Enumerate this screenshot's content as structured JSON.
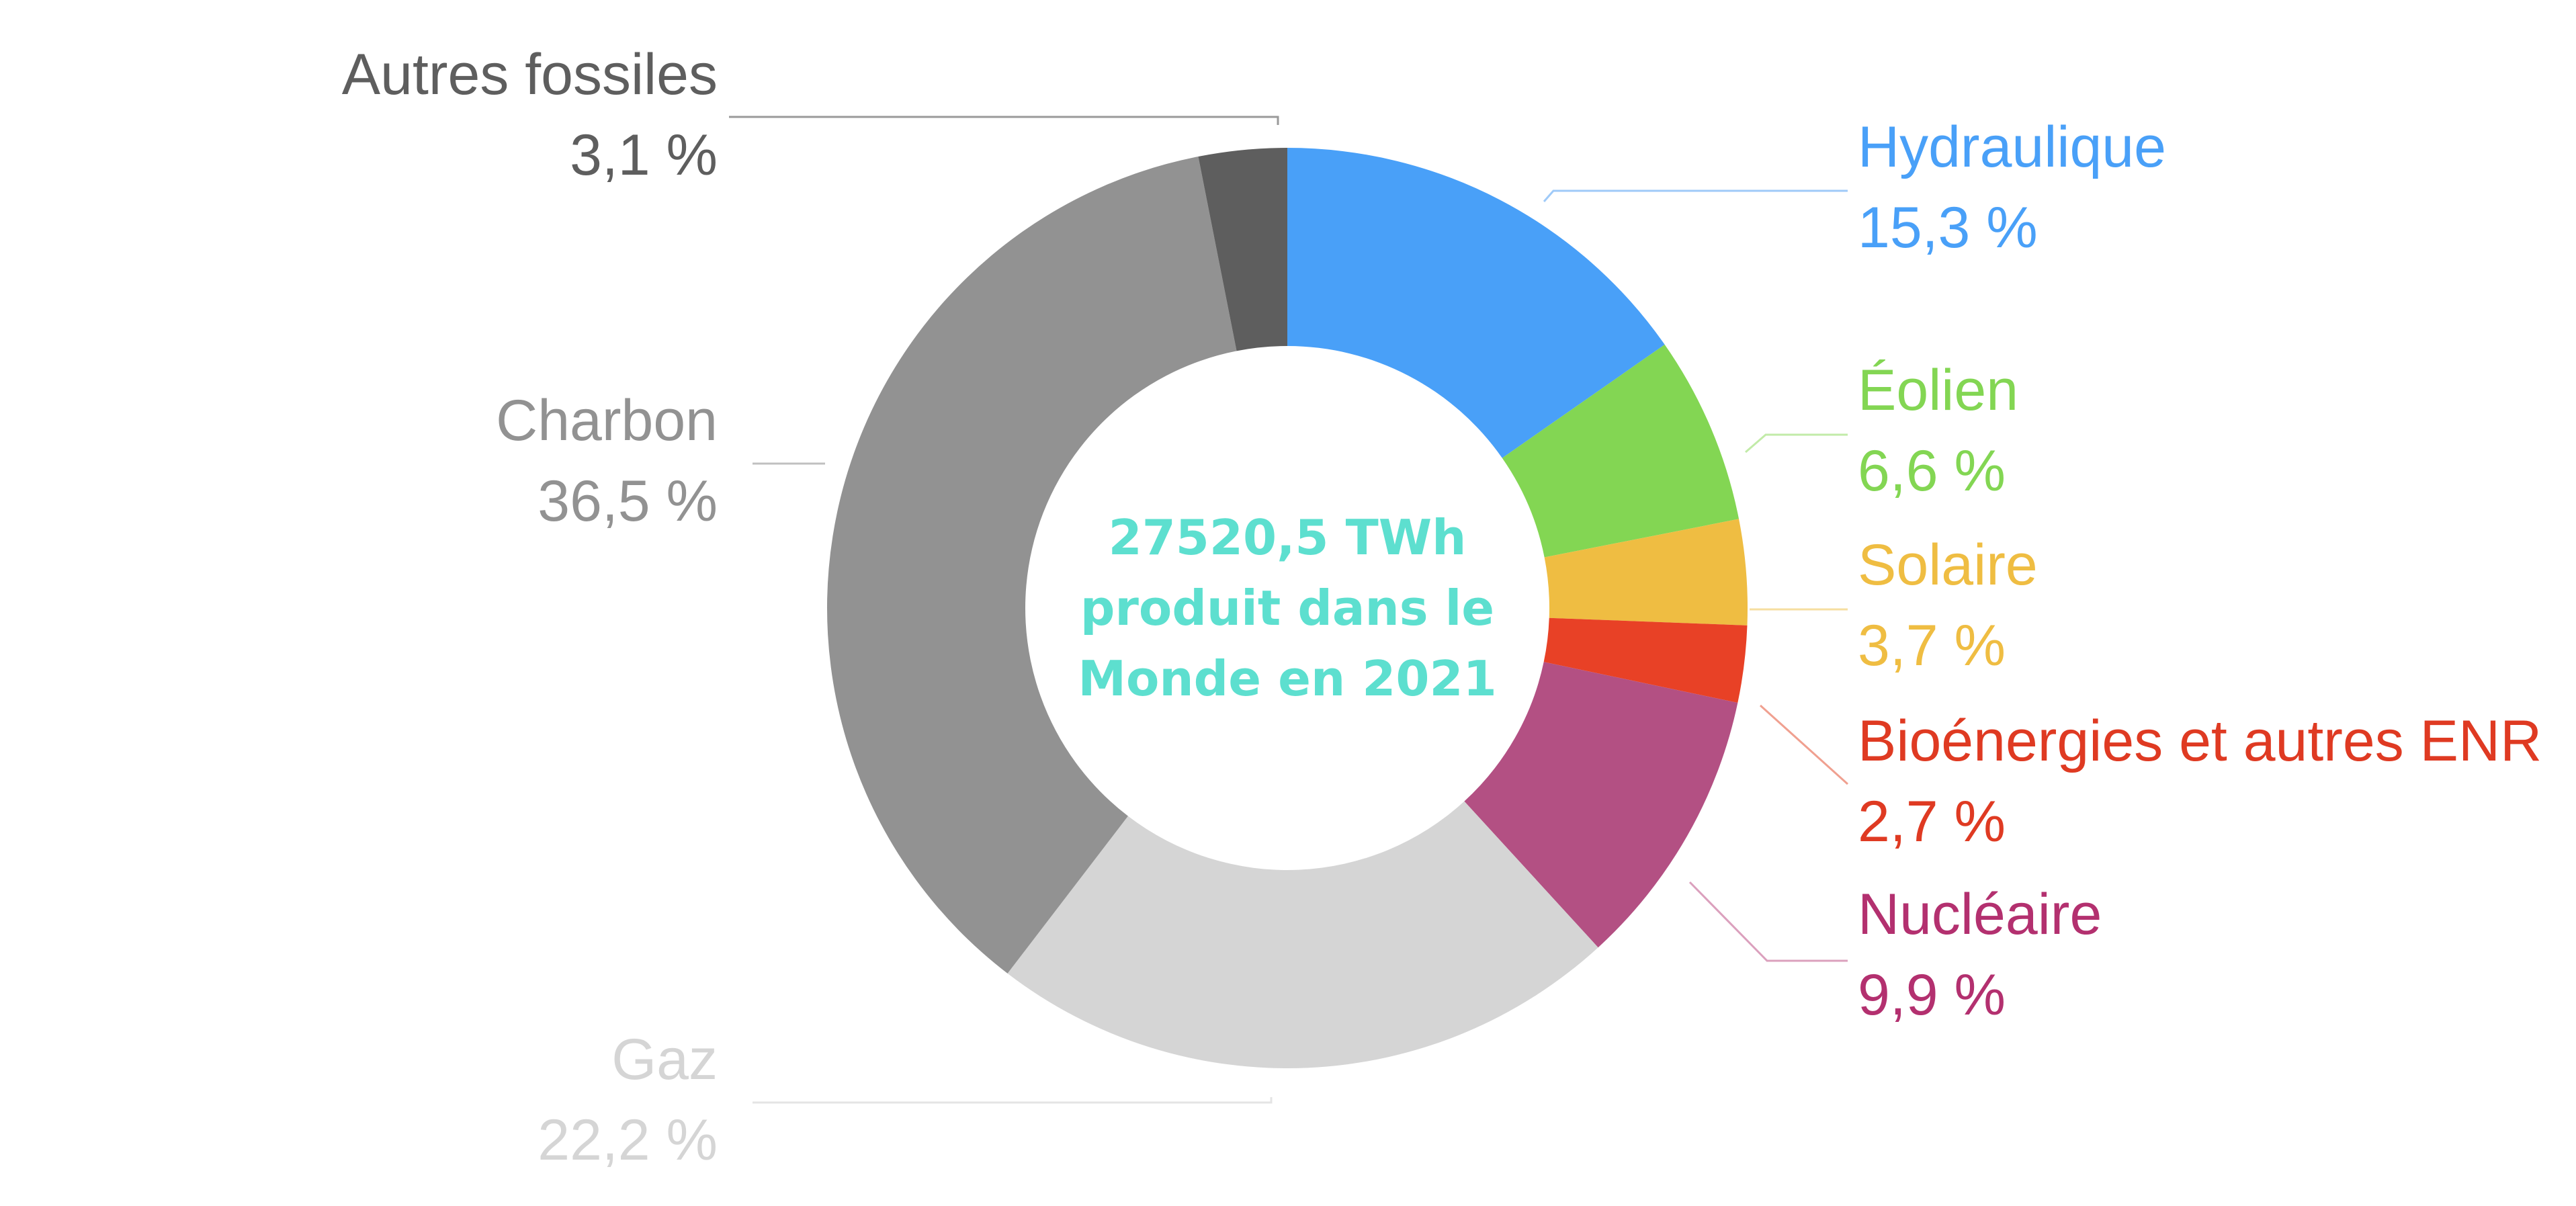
{
  "chart_data": {
    "type": "pie",
    "donut": true,
    "center_text": [
      "27520,5 TWh",
      "produit dans le",
      "Monde en 2021"
    ],
    "center_color": "#5ddfcf",
    "slices": [
      {
        "name": "Hydraulique",
        "value": 15.3,
        "value_label": "15,3 %",
        "color": "#49a0f8",
        "label_color": "#49a0f8",
        "leader_color": "#9fcaf8"
      },
      {
        "name": "Éolien",
        "value": 6.6,
        "value_label": "6,6 %",
        "color": "#83d653",
        "label_color": "#83d653",
        "leader_color": "#c2eba8"
      },
      {
        "name": "Solaire",
        "value": 3.7,
        "value_label": "3,7 %",
        "color": "#efbd42",
        "label_color": "#efbd42",
        "leader_color": "#f6dea0"
      },
      {
        "name": "Bioénergies et autres ENR",
        "value": 2.7,
        "value_label": "2,7 %",
        "color": "#e84126",
        "label_color": "#df3a22",
        "leader_color": "#f0a090"
      },
      {
        "name": "Nucléaire",
        "value": 9.9,
        "value_label": "9,9 %",
        "color": "#b35083",
        "label_color": "#b3306f",
        "leader_color": "#dba0bd"
      },
      {
        "name": "Gaz",
        "value": 22.2,
        "value_label": "22,2 %",
        "color": "#d5d5d5",
        "label_color": "#d5d5d5",
        "leader_color": "#e4e4e4"
      },
      {
        "name": "Charbon",
        "value": 36.5,
        "value_label": "36,5 %",
        "color": "#929292",
        "label_color": "#929292",
        "leader_color": "#c0c0c0"
      },
      {
        "name": "Autres fossiles",
        "value": 3.1,
        "value_label": "3,1 %",
        "color": "#5e5e5e",
        "label_color": "#5e5e5e",
        "leader_color": "#9a9a9a"
      }
    ]
  }
}
